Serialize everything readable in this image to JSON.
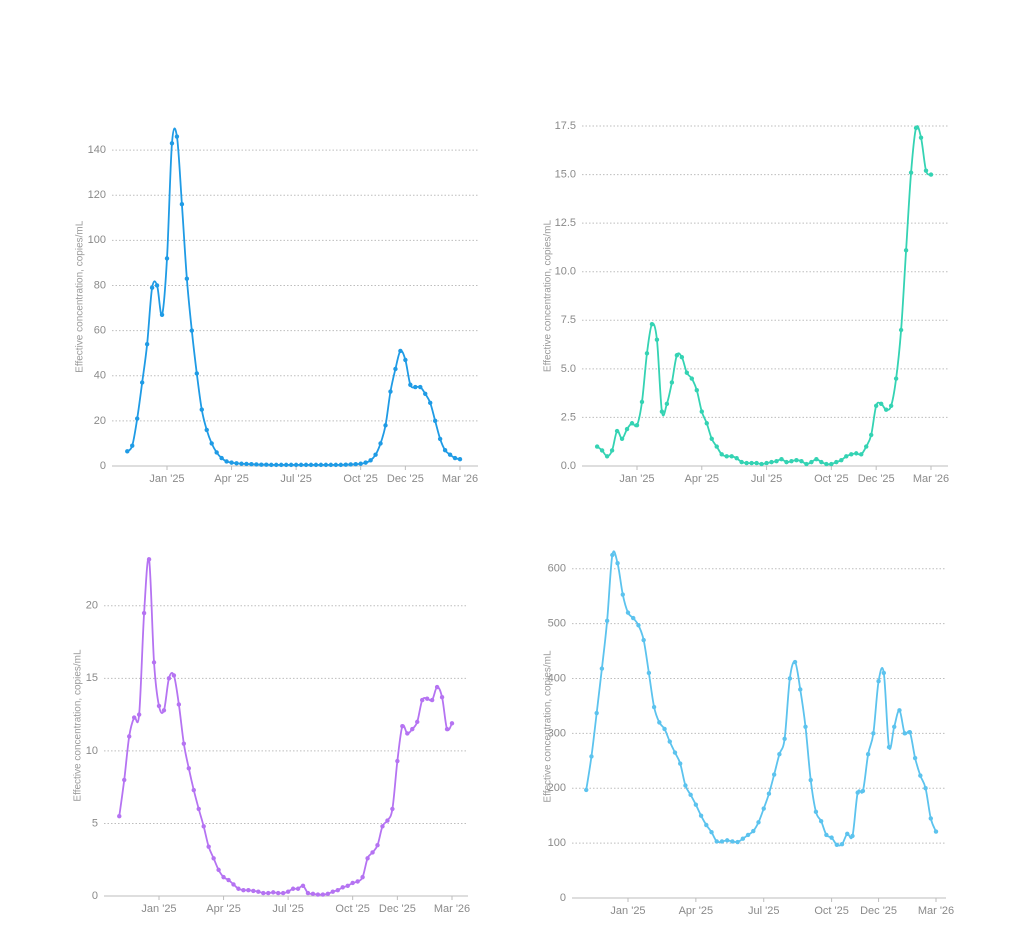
{
  "chart_data": [
    {
      "type": "line",
      "y_label": "Effective concentration, copies/mL",
      "color": "#1f9be5",
      "grid": true,
      "ylim": [
        0,
        150
      ],
      "yticks": [
        0,
        20,
        40,
        60,
        80,
        100,
        120,
        140
      ],
      "categories": [
        null,
        null,
        null,
        null,
        null,
        null,
        null,
        null,
        "Jan '25",
        null,
        null,
        null,
        null,
        null,
        null,
        null,
        null,
        null,
        null,
        null,
        null,
        "Apr '25",
        null,
        null,
        null,
        null,
        null,
        null,
        null,
        null,
        null,
        null,
        null,
        null,
        "Jul '25",
        null,
        null,
        null,
        null,
        null,
        null,
        null,
        null,
        null,
        null,
        null,
        null,
        "Oct '25",
        null,
        null,
        null,
        null,
        null,
        null,
        null,
        null,
        "Dec '25",
        null,
        null,
        null,
        null,
        null,
        null,
        null,
        null,
        null,
        null,
        "Mar '26"
      ],
      "values": [
        6.5,
        9,
        21,
        37,
        54,
        79,
        80,
        67,
        92,
        143,
        146,
        116,
        83,
        60,
        41,
        25,
        16,
        10,
        6,
        3.5,
        2,
        1.5,
        1.2,
        1,
        0.9,
        0.8,
        0.7,
        0.6,
        0.6,
        0.5,
        0.5,
        0.5,
        0.5,
        0.5,
        0.5,
        0.5,
        0.5,
        0.5,
        0.5,
        0.5,
        0.5,
        0.5,
        0.5,
        0.5,
        0.6,
        0.7,
        0.8,
        1,
        1.5,
        2.5,
        5,
        10,
        18,
        33,
        43,
        51,
        47,
        36,
        35,
        35,
        32,
        28,
        20,
        12,
        7,
        5,
        3.5,
        3
      ]
    },
    {
      "type": "line",
      "y_label": "Effective concentration, copies/mL",
      "color": "#34d3b3",
      "grid": true,
      "ylim": [
        0,
        17.5
      ],
      "yticks": [
        {
          "value": 0,
          "label": "0.0"
        },
        2.5,
        {
          "value": 5,
          "label": "5.0"
        },
        7.5,
        {
          "value": 10,
          "label": "10.0"
        },
        12.5,
        {
          "value": 15,
          "label": "15.0"
        },
        17.5
      ],
      "categories": [
        null,
        null,
        null,
        null,
        null,
        null,
        null,
        null,
        "Jan '25",
        null,
        null,
        null,
        null,
        null,
        null,
        null,
        null,
        null,
        null,
        null,
        null,
        "Apr '25",
        null,
        null,
        null,
        null,
        null,
        null,
        null,
        null,
        null,
        null,
        null,
        null,
        "Jul '25",
        null,
        null,
        null,
        null,
        null,
        null,
        null,
        null,
        null,
        null,
        null,
        null,
        "Oct '25",
        null,
        null,
        null,
        null,
        null,
        null,
        null,
        null,
        "Dec '25",
        null,
        null,
        null,
        null,
        null,
        null,
        null,
        null,
        null,
        null,
        "Mar '26"
      ],
      "values": [
        1.0,
        0.8,
        0.5,
        0.8,
        1.8,
        1.4,
        1.9,
        2.2,
        2.1,
        3.3,
        5.8,
        7.3,
        6.5,
        2.8,
        3.2,
        4.3,
        5.7,
        5.6,
        4.8,
        4.5,
        3.9,
        2.8,
        2.2,
        1.4,
        1.0,
        0.6,
        0.5,
        0.5,
        0.4,
        0.2,
        0.15,
        0.15,
        0.15,
        0.1,
        0.15,
        0.2,
        0.25,
        0.35,
        0.2,
        0.25,
        0.3,
        0.25,
        0.1,
        0.2,
        0.35,
        0.2,
        0.1,
        0.1,
        0.2,
        0.3,
        0.5,
        0.6,
        0.65,
        0.6,
        1.0,
        1.6,
        3.1,
        3.2,
        2.9,
        3.1,
        4.5,
        7.0,
        11.1,
        15.1,
        17.4,
        16.9,
        15.2,
        15.0
      ]
    },
    {
      "type": "line",
      "y_label": "Effective concentration, copies/mL",
      "color": "#b573f2",
      "grid": true,
      "ylim": [
        0,
        23.5
      ],
      "yticks": [
        0,
        5,
        10,
        15,
        20
      ],
      "categories": [
        null,
        null,
        null,
        null,
        null,
        null,
        null,
        null,
        "Jan '25",
        null,
        null,
        null,
        null,
        null,
        null,
        null,
        null,
        null,
        null,
        null,
        null,
        "Apr '25",
        null,
        null,
        null,
        null,
        null,
        null,
        null,
        null,
        null,
        null,
        null,
        null,
        "Jul '25",
        null,
        null,
        null,
        null,
        null,
        null,
        null,
        null,
        null,
        null,
        null,
        null,
        "Oct '25",
        null,
        null,
        null,
        null,
        null,
        null,
        null,
        null,
        "Dec '25",
        null,
        null,
        null,
        null,
        null,
        null,
        null,
        null,
        null,
        null,
        "Mar '26"
      ],
      "values": [
        5.5,
        8,
        11,
        12.3,
        12.5,
        19.5,
        23.2,
        16.1,
        13.1,
        12.8,
        15,
        15.2,
        13.2,
        10.5,
        8.8,
        7.3,
        6,
        4.8,
        3.4,
        2.6,
        1.8,
        1.3,
        1.1,
        0.8,
        0.5,
        0.4,
        0.4,
        0.35,
        0.3,
        0.2,
        0.2,
        0.25,
        0.2,
        0.2,
        0.3,
        0.5,
        0.5,
        0.7,
        0.2,
        0.15,
        0.1,
        0.1,
        0.15,
        0.3,
        0.4,
        0.6,
        0.7,
        0.9,
        1.0,
        1.3,
        2.6,
        3,
        3.5,
        4.8,
        5.2,
        6,
        9.3,
        11.7,
        11.2,
        11.5,
        12,
        13.5,
        13.6,
        13.5,
        14.4,
        13.7,
        11.5,
        11.9
      ]
    },
    {
      "type": "line",
      "y_label": "Effective concentration, copies/mL",
      "color": "#5cc3ee",
      "grid": true,
      "ylim": [
        0,
        625
      ],
      "yticks": [
        0,
        100,
        200,
        300,
        400,
        500,
        600
      ],
      "categories": [
        null,
        null,
        null,
        null,
        null,
        null,
        null,
        null,
        "Jan '25",
        null,
        null,
        null,
        null,
        null,
        null,
        null,
        null,
        null,
        null,
        null,
        null,
        "Apr '25",
        null,
        null,
        null,
        null,
        null,
        null,
        null,
        null,
        null,
        null,
        null,
        null,
        "Jul '25",
        null,
        null,
        null,
        null,
        null,
        null,
        null,
        null,
        null,
        null,
        null,
        null,
        "Oct '25",
        null,
        null,
        null,
        null,
        null,
        null,
        null,
        null,
        "Dec '25",
        null,
        null,
        null,
        null,
        null,
        null,
        null,
        null,
        null,
        null,
        "Mar '26"
      ],
      "values": [
        197,
        258,
        337,
        418,
        505,
        625,
        610,
        553,
        520,
        510,
        497,
        470,
        410,
        348,
        320,
        308,
        285,
        265,
        245,
        205,
        188,
        170,
        150,
        133,
        120,
        103,
        103,
        105,
        103,
        102,
        108,
        115,
        122,
        138,
        163,
        190,
        225,
        262,
        290,
        400,
        430,
        380,
        312,
        215,
        157,
        140,
        115,
        110,
        97,
        98,
        117,
        113,
        192,
        195,
        262,
        300,
        395,
        410,
        275,
        312,
        342,
        300,
        302,
        255,
        223,
        200,
        145,
        121
      ]
    }
  ]
}
